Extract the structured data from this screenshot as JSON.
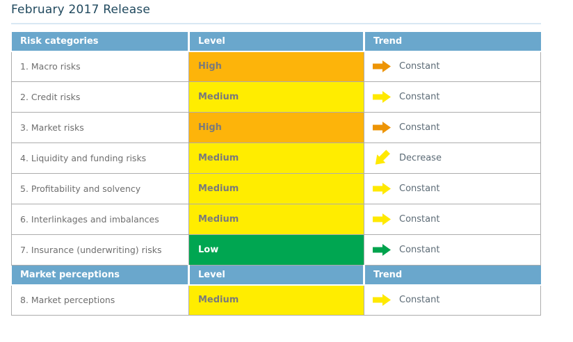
{
  "title": "February 2017 Release",
  "colors": {
    "header_bg": "#6AA7CC",
    "header_text": "#FFFFFF",
    "title_text": "#20495E",
    "divider": "#D8E8F3",
    "border": "#ACACAC",
    "category_text": "#6E6E6E",
    "trend_text": "#5C6B76",
    "level_text_dark": "#7A7A7A",
    "level_text_light": "#FFFFFF",
    "levels": {
      "high": "#FDB40A",
      "medium": "#FFED00",
      "low": "#00A651"
    },
    "arrows": {
      "orange": "#ED9405",
      "yellow": "#FFE900",
      "green": "#00A34D"
    }
  },
  "table": {
    "sections": [
      {
        "header": [
          "Risk categories",
          "Level",
          "Trend"
        ],
        "rows": [
          {
            "category": "1. Macro risks",
            "level": "High",
            "level_key": "high",
            "trend": "Constant",
            "arrow_color": "orange",
            "direction": "right"
          },
          {
            "category": "2. Credit risks",
            "level": "Medium",
            "level_key": "medium",
            "trend": "Constant",
            "arrow_color": "yellow",
            "direction": "right"
          },
          {
            "category": "3. Market risks",
            "level": "High",
            "level_key": "high",
            "trend": "Constant",
            "arrow_color": "orange",
            "direction": "right"
          },
          {
            "category": "4. Liquidity and funding risks",
            "level": "Medium",
            "level_key": "medium",
            "trend": "Decrease",
            "arrow_color": "yellow",
            "direction": "down-left"
          },
          {
            "category": "5. Profitability and solvency",
            "level": "Medium",
            "level_key": "medium",
            "trend": "Constant",
            "arrow_color": "yellow",
            "direction": "right"
          },
          {
            "category": "6. Interlinkages and imbalances",
            "level": "Medium",
            "level_key": "medium",
            "trend": "Constant",
            "arrow_color": "yellow",
            "direction": "right"
          },
          {
            "category": "7. Insurance (underwriting) risks",
            "level": "Low",
            "level_key": "low",
            "trend": "Constant",
            "arrow_color": "green",
            "direction": "right"
          }
        ]
      },
      {
        "header": [
          "Market perceptions",
          "Level",
          "Trend"
        ],
        "rows": [
          {
            "category": "8. Market perceptions",
            "level": "Medium",
            "level_key": "medium",
            "trend": "Constant",
            "arrow_color": "yellow",
            "direction": "right"
          }
        ]
      }
    ]
  }
}
